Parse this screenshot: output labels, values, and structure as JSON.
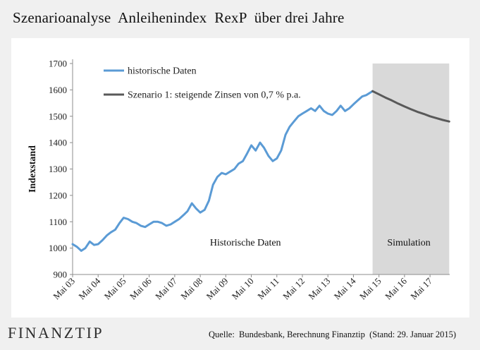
{
  "title": "Szenarioanalyse  Anleihenindex  RexP  über drei Jahre",
  "source": "Quelle:  Bundesbank, Berechnung Finanztip  (Stand: 29. Januar 2015)",
  "logo": "FINANZTIP",
  "colors": {
    "historical": "#5b9bd5",
    "scenario": "#595959",
    "simulation_band": "#d9d9d9"
  },
  "chart_data": {
    "type": "line",
    "title": "Szenarioanalyse  Anleihenindex  RexP  über drei Jahre",
    "ylabel": "Indexstand",
    "xlabel": "",
    "ylim": [
      900,
      1700
    ],
    "yticks": [
      900,
      1000,
      1100,
      1200,
      1300,
      1400,
      1500,
      1600,
      1700
    ],
    "xlim": [
      2003.33,
      2018.1
    ],
    "xticks": [
      {
        "x": 2003.33,
        "label": "Mai 03"
      },
      {
        "x": 2004.33,
        "label": "Mai 04"
      },
      {
        "x": 2005.33,
        "label": "Mai 05"
      },
      {
        "x": 2006.33,
        "label": "Mai 06"
      },
      {
        "x": 2007.33,
        "label": "Mai 07"
      },
      {
        "x": 2008.33,
        "label": "Mai 08"
      },
      {
        "x": 2009.33,
        "label": "Mai 09"
      },
      {
        "x": 2010.33,
        "label": "Mai 10"
      },
      {
        "x": 2011.33,
        "label": "Mai 11"
      },
      {
        "x": 2012.33,
        "label": "Mai 12"
      },
      {
        "x": 2013.33,
        "label": "Mai 13"
      },
      {
        "x": 2014.33,
        "label": "Mai 14"
      },
      {
        "x": 2015.33,
        "label": "Mai 15"
      },
      {
        "x": 2016.33,
        "label": "Mai 16"
      },
      {
        "x": 2017.33,
        "label": "Mai 17"
      }
    ],
    "grid": false,
    "legend_position": "top-left",
    "annotations": [
      {
        "text": "Historische Daten",
        "x": 2010.1,
        "y": 1010
      },
      {
        "text": "Simulation",
        "x": 2016.5,
        "y": 1010
      }
    ],
    "shaded_region": {
      "label": "Simulation",
      "x_start": 2015.08,
      "x_end": 2018.08
    },
    "series": [
      {
        "name": "historische Daten",
        "x": [
          2003.33,
          2003.5,
          2003.67,
          2003.83,
          2004.0,
          2004.17,
          2004.33,
          2004.5,
          2004.67,
          2004.83,
          2005.0,
          2005.17,
          2005.33,
          2005.5,
          2005.67,
          2005.83,
          2006.0,
          2006.17,
          2006.33,
          2006.5,
          2006.67,
          2006.83,
          2007.0,
          2007.17,
          2007.33,
          2007.5,
          2007.67,
          2007.83,
          2008.0,
          2008.17,
          2008.33,
          2008.5,
          2008.67,
          2008.83,
          2009.0,
          2009.17,
          2009.33,
          2009.5,
          2009.67,
          2009.83,
          2010.0,
          2010.17,
          2010.33,
          2010.5,
          2010.67,
          2010.83,
          2011.0,
          2011.17,
          2011.33,
          2011.5,
          2011.67,
          2011.83,
          2012.0,
          2012.17,
          2012.33,
          2012.5,
          2012.67,
          2012.83,
          2013.0,
          2013.17,
          2013.33,
          2013.5,
          2013.67,
          2013.83,
          2014.0,
          2014.17,
          2014.33,
          2014.5,
          2014.67,
          2014.83,
          2015.08
        ],
        "values": [
          1015,
          1005,
          990,
          1000,
          1025,
          1012,
          1015,
          1030,
          1048,
          1060,
          1070,
          1095,
          1115,
          1110,
          1100,
          1095,
          1085,
          1080,
          1090,
          1100,
          1100,
          1095,
          1085,
          1090,
          1100,
          1110,
          1125,
          1140,
          1170,
          1150,
          1135,
          1145,
          1180,
          1240,
          1270,
          1285,
          1280,
          1290,
          1300,
          1320,
          1330,
          1360,
          1390,
          1370,
          1400,
          1380,
          1350,
          1330,
          1340,
          1370,
          1430,
          1460,
          1480,
          1500,
          1510,
          1520,
          1530,
          1520,
          1540,
          1520,
          1510,
          1505,
          1520,
          1540,
          1520,
          1530,
          1545,
          1560,
          1575,
          1580,
          1595
        ]
      },
      {
        "name": "Szenario 1: steigende Zinsen von 0,7 % p.a.",
        "x": [
          2015.08,
          2015.33,
          2015.58,
          2015.83,
          2016.08,
          2016.33,
          2016.58,
          2016.83,
          2017.08,
          2017.33,
          2017.58,
          2017.83,
          2018.08
        ],
        "values": [
          1595,
          1583,
          1571,
          1560,
          1548,
          1537,
          1527,
          1517,
          1509,
          1500,
          1493,
          1486,
          1480
        ]
      }
    ]
  }
}
